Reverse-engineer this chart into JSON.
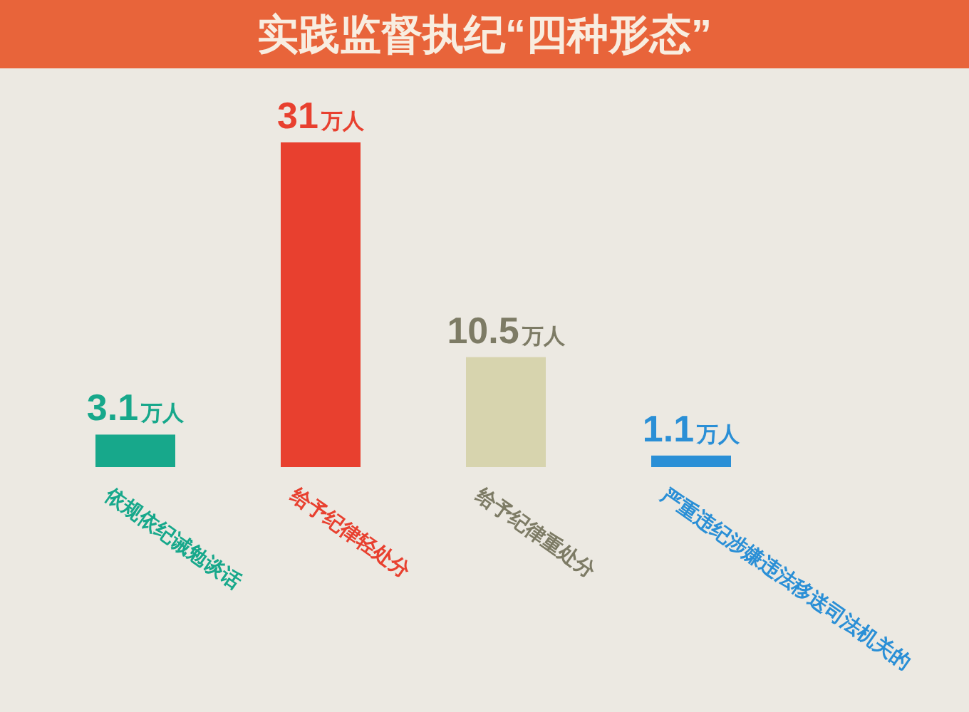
{
  "chart_data": {
    "type": "bar",
    "title": "实践监督执纪“四种形态”",
    "categories": [
      "依规依纪诫勉谈话",
      "给予纪律轻处分",
      "给予纪律重处分",
      "严重违纪涉嫌违法移送司法机关的"
    ],
    "values": [
      3.1,
      31,
      10.5,
      1.1
    ],
    "colors": [
      "#17a88b",
      "#e8402f",
      "#d7d4ae",
      "#2a8fd6"
    ],
    "value_labels": [
      "3.1万人",
      "31万人",
      "10.5万人",
      "1.1万人"
    ]
  }
}
